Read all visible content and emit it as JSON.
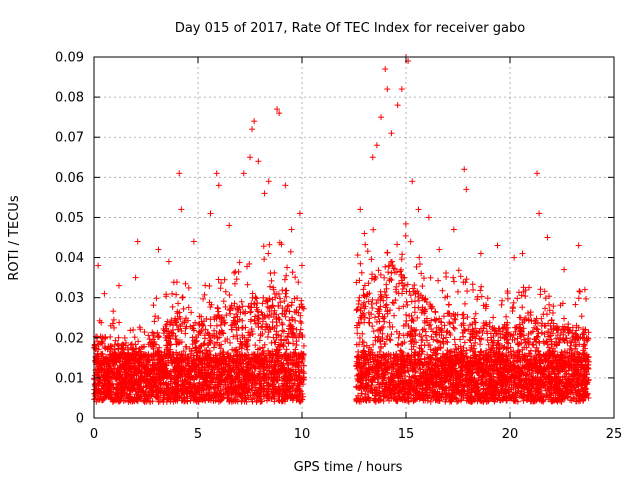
{
  "chart_data": {
    "type": "scatter",
    "title": "Day 015 of 2017, Rate Of TEC Index for receiver gabo",
    "xlabel": "GPS time / hours",
    "ylabel": "ROTI / TECUs",
    "xlim": [
      0,
      25
    ],
    "ylim": [
      0,
      0.09
    ],
    "x_ticks": [
      {
        "value": 0,
        "label": "0"
      },
      {
        "value": 5,
        "label": "5"
      },
      {
        "value": 10,
        "label": "10"
      },
      {
        "value": 15,
        "label": "15"
      },
      {
        "value": 20,
        "label": "20"
      },
      {
        "value": 25,
        "label": "25"
      }
    ],
    "y_ticks": [
      {
        "value": 0,
        "label": "0"
      },
      {
        "value": 0.01,
        "label": "0.01"
      },
      {
        "value": 0.02,
        "label": "0.02"
      },
      {
        "value": 0.03,
        "label": "0.03"
      },
      {
        "value": 0.04,
        "label": "0.04"
      },
      {
        "value": 0.05,
        "label": "0.05"
      },
      {
        "value": 0.06,
        "label": "0.06"
      },
      {
        "value": 0.07,
        "label": "0.07"
      },
      {
        "value": 0.08,
        "label": "0.08"
      },
      {
        "value": 0.09,
        "label": "0.09"
      }
    ],
    "grid": true,
    "marker": "+",
    "series_color": "#ff0000",
    "data_segments": [
      {
        "start": 0.0,
        "end": 10.1
      },
      {
        "start": 12.6,
        "end": 23.8
      }
    ],
    "series": [
      {
        "name": "ROTI",
        "color": "#ff0000",
        "points": [
          {
            "x": 0.2,
            "y": 0.038
          },
          {
            "x": 0.5,
            "y": 0.031
          },
          {
            "x": 1.2,
            "y": 0.033
          },
          {
            "x": 2.0,
            "y": 0.035
          },
          {
            "x": 2.1,
            "y": 0.044
          },
          {
            "x": 3.1,
            "y": 0.042
          },
          {
            "x": 3.6,
            "y": 0.039
          },
          {
            "x": 4.1,
            "y": 0.061
          },
          {
            "x": 4.2,
            "y": 0.052
          },
          {
            "x": 4.8,
            "y": 0.044
          },
          {
            "x": 5.6,
            "y": 0.051
          },
          {
            "x": 5.9,
            "y": 0.061
          },
          {
            "x": 6.0,
            "y": 0.058
          },
          {
            "x": 6.5,
            "y": 0.048
          },
          {
            "x": 7.2,
            "y": 0.061
          },
          {
            "x": 7.5,
            "y": 0.065
          },
          {
            "x": 7.6,
            "y": 0.072
          },
          {
            "x": 7.7,
            "y": 0.074
          },
          {
            "x": 7.9,
            "y": 0.064
          },
          {
            "x": 8.2,
            "y": 0.056
          },
          {
            "x": 8.4,
            "y": 0.059
          },
          {
            "x": 8.8,
            "y": 0.077
          },
          {
            "x": 8.9,
            "y": 0.076
          },
          {
            "x": 9.2,
            "y": 0.058
          },
          {
            "x": 9.5,
            "y": 0.047
          },
          {
            "x": 9.9,
            "y": 0.051
          },
          {
            "x": 12.8,
            "y": 0.052
          },
          {
            "x": 13.0,
            "y": 0.046
          },
          {
            "x": 13.4,
            "y": 0.065
          },
          {
            "x": 13.6,
            "y": 0.068
          },
          {
            "x": 13.8,
            "y": 0.075
          },
          {
            "x": 14.0,
            "y": 0.087
          },
          {
            "x": 14.1,
            "y": 0.082
          },
          {
            "x": 14.3,
            "y": 0.071
          },
          {
            "x": 14.6,
            "y": 0.078
          },
          {
            "x": 14.8,
            "y": 0.082
          },
          {
            "x": 15.0,
            "y": 0.09
          },
          {
            "x": 15.1,
            "y": 0.089
          },
          {
            "x": 15.3,
            "y": 0.059
          },
          {
            "x": 15.6,
            "y": 0.052
          },
          {
            "x": 16.1,
            "y": 0.05
          },
          {
            "x": 16.6,
            "y": 0.042
          },
          {
            "x": 17.3,
            "y": 0.047
          },
          {
            "x": 17.8,
            "y": 0.062
          },
          {
            "x": 17.9,
            "y": 0.057
          },
          {
            "x": 18.6,
            "y": 0.041
          },
          {
            "x": 19.4,
            "y": 0.043
          },
          {
            "x": 20.2,
            "y": 0.04
          },
          {
            "x": 20.6,
            "y": 0.041
          },
          {
            "x": 21.3,
            "y": 0.061
          },
          {
            "x": 21.4,
            "y": 0.051
          },
          {
            "x": 21.8,
            "y": 0.045
          },
          {
            "x": 22.6,
            "y": 0.037
          },
          {
            "x": 23.3,
            "y": 0.043
          },
          {
            "x": 23.6,
            "y": 0.032
          }
        ]
      }
    ]
  }
}
